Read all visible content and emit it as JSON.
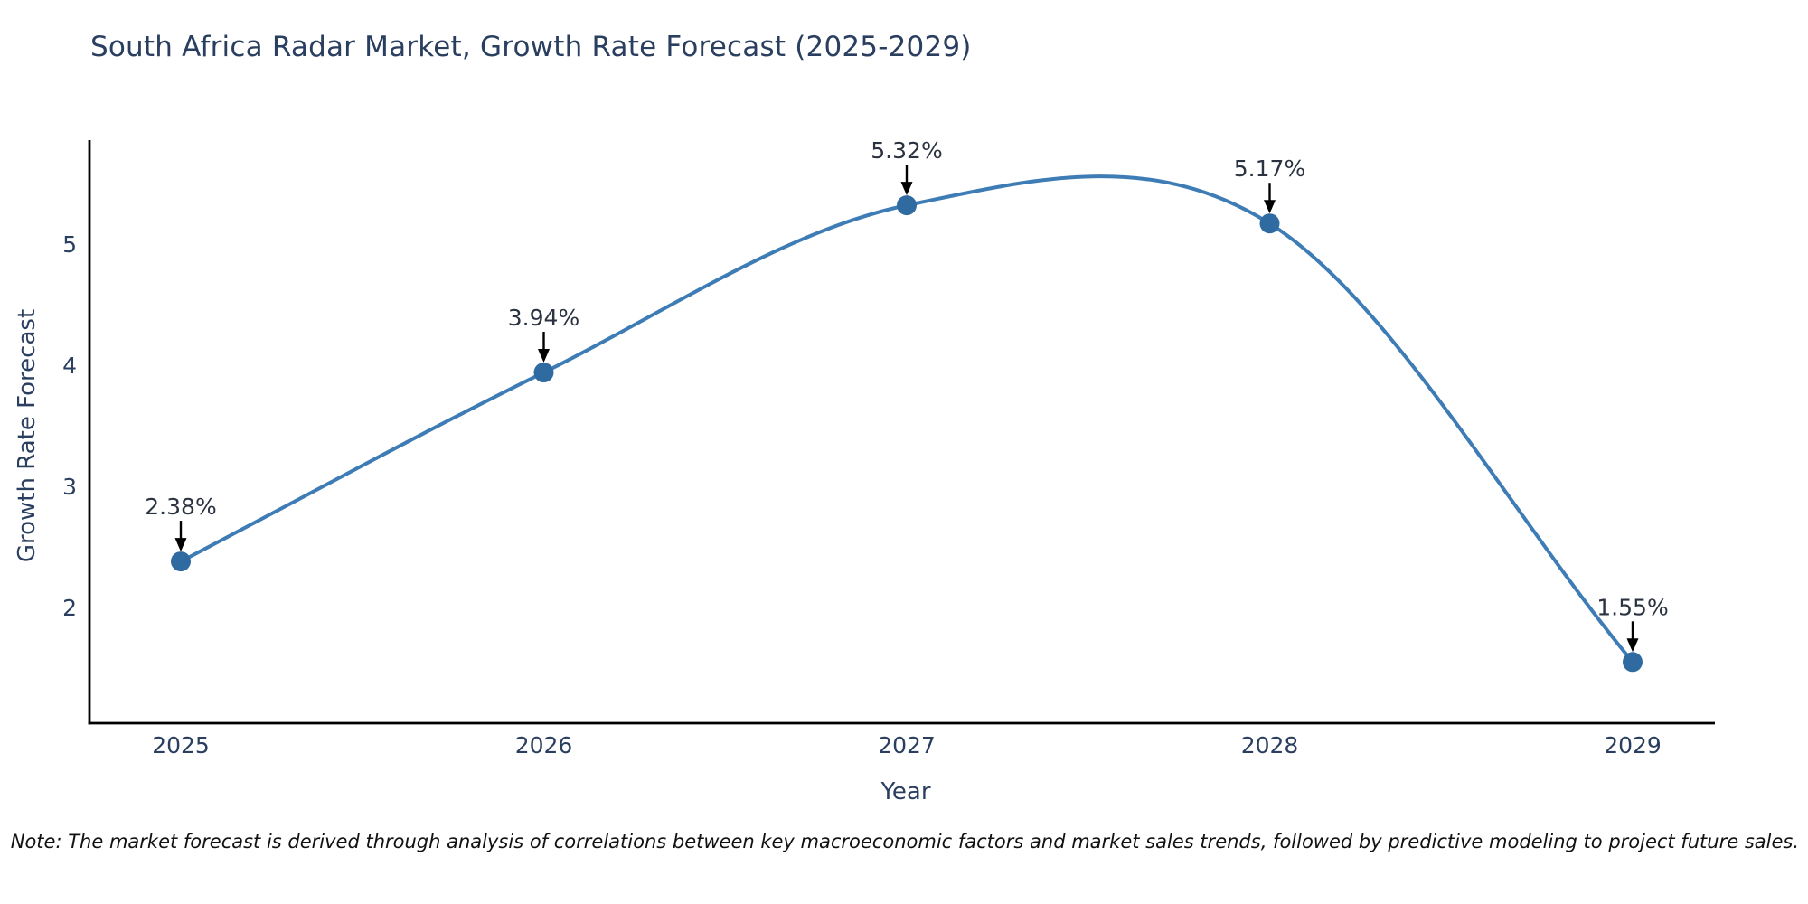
{
  "colors": {
    "background": "#ffffff",
    "line": "#3e7cb5",
    "marker": "#2f6ba0",
    "axis": "#000000",
    "tick": "#2a3f5f",
    "title": "#2a3f5f",
    "axis_title": "#2a3f5f",
    "annotation": "#2b3340",
    "arrow": "#000000",
    "note": "#111111"
  },
  "chart_data": {
    "type": "line",
    "title": "South Africa Radar Market, Growth Rate Forecast (2025-2029)",
    "xlabel": "Year",
    "ylabel": "Growth Rate Forecast",
    "x": [
      2025,
      2026,
      2027,
      2028,
      2029
    ],
    "series": [
      {
        "name": "Growth Rate Forecast",
        "values": [
          2.38,
          3.94,
          5.32,
          5.17,
          1.55
        ]
      }
    ],
    "point_labels": [
      "2.38%",
      "3.94%",
      "5.32%",
      "5.17%",
      "1.55%"
    ],
    "yticks": [
      2,
      3,
      4,
      5
    ],
    "xticks": [
      "2025",
      "2026",
      "2027",
      "2028",
      "2029"
    ],
    "ylim": [
      1.0,
      5.9
    ],
    "xlim": [
      2024.7,
      2029.2
    ],
    "grid": false,
    "legend": false,
    "line_shape": "spline",
    "marker": "circle",
    "annotation_arrows": true
  },
  "footnote": {
    "text": "Note: The market forecast is derived through analysis of correlations between key macroeconomic factors and market sales trends, followed by predictive modeling to project future sales."
  }
}
